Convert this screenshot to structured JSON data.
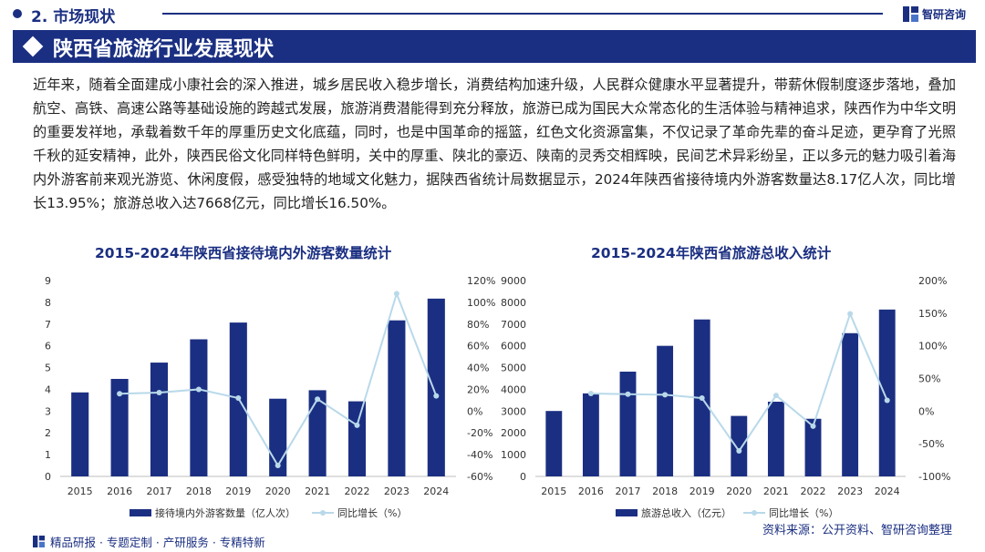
{
  "header": {
    "section_label": "2. 市场现状",
    "logo_text": "智研咨询",
    "title": "陕西省旅游行业发展现状"
  },
  "paragraph": "近年来，随着全面建成小康社会的深入推进，城乡居民收入稳步增长，消费结构加速升级，人民群众健康水平显著提升，带薪休假制度逐步落地，叠加航空、高铁、高速公路等基础设施的跨越式发展，旅游消费潜能得到充分释放，旅游已成为国民大众常态化的生活体验与精神追求，陕西作为中华文明的重要发祥地，承载着数千年的厚重历史文化底蕴，同时，也是中国革命的摇篮，红色文化资源富集，不仅记录了革命先辈的奋斗足迹，更孕育了光照千秋的延安精神，此外，陕西民俗文化同样特色鲜明，关中的厚重、陕北的豪迈、陕南的灵秀交相辉映，民间艺术异彩纷呈，正以多元的魅力吸引着海内外游客前来观光游览、休闲度假，感受独特的地域文化魅力，据陕西省统计局数据显示，2024年陕西省接待境内外游客数量达8.17亿人次，同比增长13.95%；旅游总收入达7668亿元，同比增长16.50%。",
  "colors": {
    "brand": "#1b2f82",
    "bar": "#1b2f82",
    "line": "#b9d9ea"
  },
  "chart_data": [
    {
      "type": "bar",
      "title": "2015-2024年陕西省接待境内外游客数量统计",
      "categories": [
        "2015",
        "2016",
        "2017",
        "2018",
        "2019",
        "2020",
        "2021",
        "2022",
        "2023",
        "2024"
      ],
      "series": [
        {
          "name": "接待境内外游客数量（亿人次）",
          "type": "bar",
          "axis": "left",
          "values": [
            3.86,
            4.48,
            5.23,
            6.3,
            7.07,
            3.57,
            3.96,
            3.45,
            7.17,
            8.17
          ]
        },
        {
          "name": "同比增长（%）",
          "type": "line",
          "axis": "right",
          "values": [
            null,
            16,
            17,
            20,
            12,
            -50,
            11,
            -13,
            108,
            13.95
          ]
        }
      ],
      "ylim_left": [
        0,
        9
      ],
      "yticks_left": [
        "0",
        "1",
        "2",
        "3",
        "4",
        "5",
        "6",
        "7",
        "8",
        "9"
      ],
      "ylim_right": [
        -60,
        120
      ],
      "yticks_right": [
        "-60%",
        "-40%",
        "-20%",
        "0%",
        "20%",
        "40%",
        "60%",
        "80%",
        "100%",
        "120%"
      ],
      "legend": "bottom",
      "grid": false
    },
    {
      "type": "bar",
      "title": "2015-2024年陕西省旅游总收入统计",
      "categories": [
        "2015",
        "2016",
        "2017",
        "2018",
        "2019",
        "2020",
        "2021",
        "2022",
        "2023",
        "2024"
      ],
      "series": [
        {
          "name": "旅游总收入（亿元）",
          "type": "bar",
          "axis": "left",
          "values": [
            3006,
            3814,
            4814,
            6000,
            7212,
            2779,
            3432,
            2648,
            6582,
            7668
          ]
        },
        {
          "name": "同比增长（%）",
          "type": "line",
          "axis": "right",
          "values": [
            null,
            27,
            26,
            25,
            20,
            -61,
            24,
            -23,
            149,
            16.5
          ]
        }
      ],
      "ylim_left": [
        0,
        9000
      ],
      "yticks_left": [
        "0",
        "1000",
        "2000",
        "3000",
        "4000",
        "5000",
        "6000",
        "7000",
        "8000",
        "9000"
      ],
      "ylim_right": [
        -100,
        200
      ],
      "yticks_right": [
        "-100%",
        "-50%",
        "0%",
        "50%",
        "100%",
        "150%",
        "200%"
      ],
      "legend": "bottom",
      "grid": false
    }
  ],
  "footer": {
    "left": "精品研报 · 专题定制 · 产研服务 · 专精特新",
    "source": "资料来源：公开资料、智研咨询整理"
  }
}
